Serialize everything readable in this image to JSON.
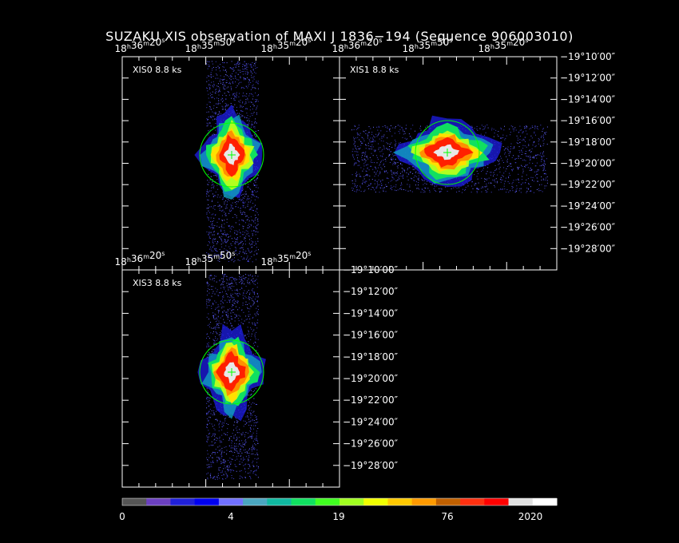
{
  "title": "SUZAKU XIS observation of MAXI J 1836−194  (Sequence 906003010)",
  "panels": [
    {
      "label": "XIS0 8.8 ks",
      "orientation": "vertical",
      "ra_ticks": [
        {
          "h": "18",
          "m": "36",
          "s": "20"
        },
        {
          "h": "18",
          "m": "35",
          "s": "50"
        },
        {
          "h": "18",
          "m": "35",
          "s": "20"
        }
      ]
    },
    {
      "label": "XIS1 8.8 ks",
      "orientation": "horizontal",
      "ra_ticks": [
        {
          "h": "18",
          "m": "36",
          "s": "20"
        },
        {
          "h": "18",
          "m": "35",
          "s": "50"
        },
        {
          "h": "18",
          "m": "35",
          "s": "20"
        }
      ],
      "dec_ticks": [
        "−19°10′00″",
        "−19°12′00″",
        "−19°14′00″",
        "−19°16′00″",
        "−19°18′00″",
        "−19°20′00″",
        "−19°22′00″",
        "−19°24′00″",
        "−19°26′00″",
        "−19°28′00″"
      ]
    },
    {
      "label": "XIS3 8.8 ks",
      "orientation": "vertical",
      "ra_ticks": [
        {
          "h": "18",
          "m": "36",
          "s": "20"
        },
        {
          "h": "18",
          "m": "35",
          "s": "50"
        },
        {
          "h": "18",
          "m": "35",
          "s": "20"
        }
      ],
      "dec_ticks": [
        "−19°10′00″",
        "−19°12′00″",
        "−19°14′00″",
        "−19°16′00″",
        "−19°18′00″",
        "−19°20′00″",
        "−19°22′00″",
        "−19°24′00″",
        "−19°26′00″",
        "−19°28′00″"
      ]
    }
  ],
  "colorbar": {
    "colors": [
      "#555555",
      "#6b40c0",
      "#2020d8",
      "#0000f0",
      "#7070ff",
      "#4aa6c0",
      "#10b8a0",
      "#10e060",
      "#40ff20",
      "#a0ff20",
      "#f0ff00",
      "#ffc800",
      "#ff9a00",
      "#c06000",
      "#ff3010",
      "#ff0000",
      "#e0e0e0",
      "#ffffff"
    ],
    "labels": [
      "0",
      "4",
      "19",
      "76",
      "2020"
    ]
  },
  "colors": {
    "background": "#000000",
    "axes": "#ffffff",
    "circle": "#00ff00"
  }
}
